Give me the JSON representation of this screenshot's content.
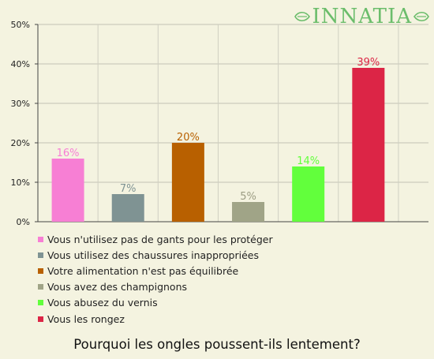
{
  "brand": {
    "logo_text": "INNATIA"
  },
  "chart_data": {
    "type": "bar",
    "title": "Pourquoi les ongles poussent-ils lentement?",
    "ylim": [
      0,
      50
    ],
    "yticks": [
      0,
      10,
      20,
      30,
      40,
      50
    ],
    "ytick_labels": [
      "0%",
      "10%",
      "20%",
      "30%",
      "40%",
      "50%"
    ],
    "grid": true,
    "legend_position": "bottom",
    "categories": [
      "Vous n'utilisez pas de gants pour les protéger",
      "Vous utilisez des chaussures inappropriées",
      "Votre alimentation n'est pas équilibrée",
      "Vous avez des champignons",
      "Vous abusez du vernis",
      "Vous les rongez"
    ],
    "values": [
      16,
      7,
      20,
      5,
      14,
      39
    ],
    "value_labels": [
      "16%",
      "7%",
      "20%",
      "5%",
      "14%",
      "39%"
    ],
    "colors": [
      "#f77fd4",
      "#7f9393",
      "#b86000",
      "#a0a487",
      "#62ff3c",
      "#dc2546"
    ],
    "label_colors": [
      "#f77fd4",
      "#7f9393",
      "#b86000",
      "#9c9d83",
      "#62ff3c",
      "#dc2546"
    ]
  }
}
